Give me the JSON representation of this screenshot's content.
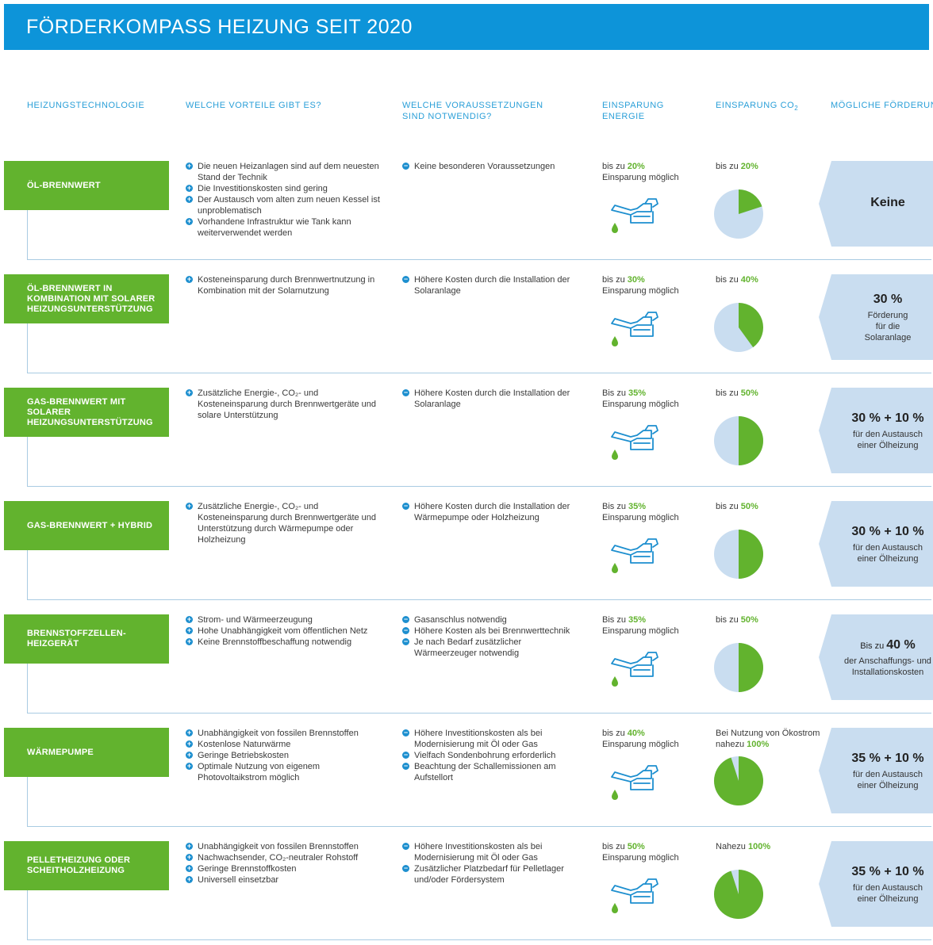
{
  "banner": {
    "title": "FÖRDERKOMPASS HEIZUNG SEIT 2020"
  },
  "columns": {
    "technology": "HEIZUNGSTECHNOLOGIE",
    "advantages": "WELCHE VORTEILE GIBT ES?",
    "requirements": "WELCHE VORAUSSETZUNGEN SINd NOTWENDIG?",
    "energy": "EINSPARUNG ENERGIE",
    "co2_prefix": "EINSPARUNG CO",
    "co2_sub": "2",
    "funding": "MÖGLICHE FÖRDERUNG"
  },
  "colors": {
    "banner": "#0d94d9",
    "green": "#62b32e",
    "light_blue": "#c9ddf0",
    "accent_blue": "#1d8fcf"
  },
  "rows": [
    {
      "technology": "ÖL-BRENNWERT",
      "pros": [
        "Die neuen Heizanlagen sind auf dem neuesten Stand der Technik",
        "Die Investitionskosten sind gering",
        "Der Austausch vom alten zum neuen Kessel ist unproblematisch",
        "Vorhandene Infrastruktur wie Tank kann weiterverwendet werden"
      ],
      "cons": [
        "Keine besonderen Voraussetzungen"
      ],
      "energy_prefix": "bis zu ",
      "energy_pct": "20%",
      "energy_suffix": "Einsparung möglich",
      "co2_prefix": "bis zu ",
      "co2_pct": "20%",
      "co2_share": 0.2,
      "funding_pre": "",
      "funding_big": "Keine",
      "funding_sub": ""
    },
    {
      "technology": "ÖL-BRENNWERT IN KOMBINATION MIT SOLARER HEIZUNGSUNTERSTÜTZUNG",
      "pros": [
        "Kosteneinsparung durch Brennwertnutzung in Kombination mit der Solarnutzung"
      ],
      "cons": [
        "Höhere Kosten durch die Installation der Solaranlage"
      ],
      "energy_prefix": "bis zu ",
      "energy_pct": "30%",
      "energy_suffix": "Einsparung möglich",
      "co2_prefix": "bis zu ",
      "co2_pct": "40%",
      "co2_share": 0.4,
      "funding_pre": "",
      "funding_big": "30 %",
      "funding_sub": "Förderung\nfür die\nSolaranlage"
    },
    {
      "technology": "GAS-BRENNWERT MIT SOLARER HEIZUNGSUNTERSTÜTZUNG",
      "pros": [
        "Zusätzliche Energie-, CO₂- und Kosteneinsparung durch Brennwertgeräte und solare Unterstützung"
      ],
      "cons": [
        "Höhere Kosten durch die Installation der Solaranlage"
      ],
      "energy_prefix": "Bis zu ",
      "energy_pct": "35%",
      "energy_suffix": "Einsparung möglich",
      "co2_prefix": "bis zu ",
      "co2_pct": "50%",
      "co2_share": 0.5,
      "funding_pre": "",
      "funding_big": "30 % + 10 %",
      "funding_sub": "für den Austausch\neiner Ölheizung"
    },
    {
      "technology": "GAS-BRENNWERT + HYBRID",
      "pros": [
        "Zusätzliche Energie-, CO₂- und Kosteneinsparung durch Brennwertgeräte und Unterstützung durch Wärmepumpe oder Holzheizung"
      ],
      "cons": [
        "Höhere Kosten durch die Installation der Wärmepumpe oder Holzheizung"
      ],
      "energy_prefix": "Bis zu ",
      "energy_pct": "35%",
      "energy_suffix": "Einsparung möglich",
      "co2_prefix": "bis zu ",
      "co2_pct": "50%",
      "co2_share": 0.5,
      "funding_pre": "",
      "funding_big": "30 % + 10 %",
      "funding_sub": "für den Austausch\neiner Ölheizung"
    },
    {
      "technology": "BRENNSTOFFZELLEN-\nHEIZGERÄT",
      "pros": [
        "Strom- und Wärmeerzeugung",
        "Hohe Unabhängigkeit vom öffentlichen Netz",
        "Keine Brennstoffbeschaffung notwendig"
      ],
      "cons": [
        "Gasanschlus notwendig",
        "Höhere Kosten als bei Brennwerttechnik",
        "Je nach Bedarf zusätzlicher Wärmeerzeuger notwendig"
      ],
      "energy_prefix": "Bis zu ",
      "energy_pct": "35%",
      "energy_suffix": "Einsparung möglich",
      "co2_prefix": "bis zu ",
      "co2_pct": "50%",
      "co2_share": 0.5,
      "funding_pre": "Bis zu ",
      "funding_big": "40 %",
      "funding_sub": "der Anschaffungs- und\nInstallationskosten"
    },
    {
      "technology": "WÄRMEPUMPE",
      "pros": [
        "Unabhängigkeit von fossilen Brennstoffen",
        "Kostenlose Naturwärme",
        "Geringe Betriebskosten",
        "Optimale Nutzung von eigenem Photovoltaikstrom möglich"
      ],
      "cons": [
        "Höhere Investitionskosten als bei Modernisierung mit Öl oder Gas",
        "Vielfach Sondenbohrung erforderlich",
        "Beachtung der Schallemissionen am Aufstellort"
      ],
      "energy_prefix": "bis zu ",
      "energy_pct": "40%",
      "energy_suffix": "Einsparung möglich",
      "co2_prefix": "Bei Nutzung von Ökostrom nahezu ",
      "co2_pct": "100%",
      "co2_share": 0.95,
      "funding_pre": "",
      "funding_big": "35 % + 10 %",
      "funding_sub": "für den Austausch\neiner Ölheizung"
    },
    {
      "technology": "PELLETHEIZUNG ODER SCHEITHOLZHEIZUNG",
      "pros": [
        "Unabhängigkeit von fossilen Brennstoffen",
        "Nachwachsender, CO₂-neutraler Rohstoff",
        "Geringe Brennstoffkosten",
        "Universell einsetzbar"
      ],
      "cons": [
        "Höhere Investitionskosten als bei Modernisierung mit Öl oder Gas",
        "Zusätzlicher Platzbedarf für Pelletlager und/oder Fördersystem"
      ],
      "energy_prefix": "bis zu ",
      "energy_pct": "50%",
      "energy_suffix": "Einsparung möglich",
      "co2_prefix": "Nahezu ",
      "co2_pct": "100%",
      "co2_share": 0.95,
      "funding_pre": "",
      "funding_big": "35 % + 10 %",
      "funding_sub": "für den Austausch\neiner Ölheizung"
    }
  ],
  "chart_data": {
    "type": "pie",
    "title": "",
    "xlabel": "",
    "ylabel": "",
    "categories": [
      "ÖL-BRENNWERT",
      "ÖL-BRENNWERT IN KOMBINATION MIT SOLARER HEIZUNGSUNTERSTÜTZUNG",
      "GAS-BRENNWERT MIT SOLARER HEIZUNGSUNTERSTÜTZUNG",
      "GAS-BRENNWERT + HYBRID",
      "BRENNSTOFFZELLEN-HEIZGERÄT",
      "WÄRMEPUMPE",
      "PELLETHEIZUNG ODER SCHEITHOLZHEIZUNG"
    ],
    "values": [
      20,
      40,
      50,
      50,
      50,
      95,
      95
    ],
    "energy_savings_percent": [
      20,
      30,
      35,
      35,
      35,
      40,
      50
    ]
  }
}
